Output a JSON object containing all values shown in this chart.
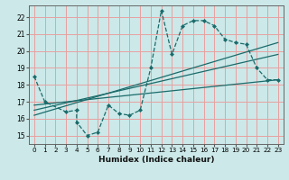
{
  "title": "",
  "xlabel": "Humidex (Indice chaleur)",
  "bg_color": "#cce8e8",
  "grid_color": "#e8a0a0",
  "line_color": "#1a6b6b",
  "xlim": [
    -0.5,
    23.5
  ],
  "ylim": [
    14.5,
    22.7
  ],
  "xticks": [
    0,
    1,
    2,
    3,
    4,
    5,
    6,
    7,
    8,
    9,
    10,
    11,
    12,
    13,
    14,
    15,
    16,
    17,
    18,
    19,
    20,
    21,
    22,
    23
  ],
  "yticks": [
    15,
    16,
    17,
    18,
    19,
    20,
    21,
    22
  ],
  "curve_x": [
    0,
    1,
    3,
    4,
    4,
    5,
    6,
    7,
    8,
    9,
    10,
    11,
    12,
    13,
    14,
    15,
    16,
    17,
    18,
    19,
    20,
    21,
    22,
    23
  ],
  "curve_y": [
    18.5,
    17.0,
    16.4,
    16.5,
    15.8,
    15.0,
    15.2,
    16.8,
    16.3,
    16.2,
    16.5,
    19.0,
    22.4,
    19.8,
    21.5,
    21.8,
    21.8,
    21.5,
    20.7,
    20.5,
    20.4,
    19.0,
    18.3,
    18.3
  ],
  "line1_x": [
    0,
    23
  ],
  "line1_y": [
    16.8,
    18.3
  ],
  "line2_x": [
    0,
    23
  ],
  "line2_y": [
    16.5,
    19.8
  ],
  "line3_x": [
    0,
    23
  ],
  "line3_y": [
    16.2,
    20.5
  ]
}
